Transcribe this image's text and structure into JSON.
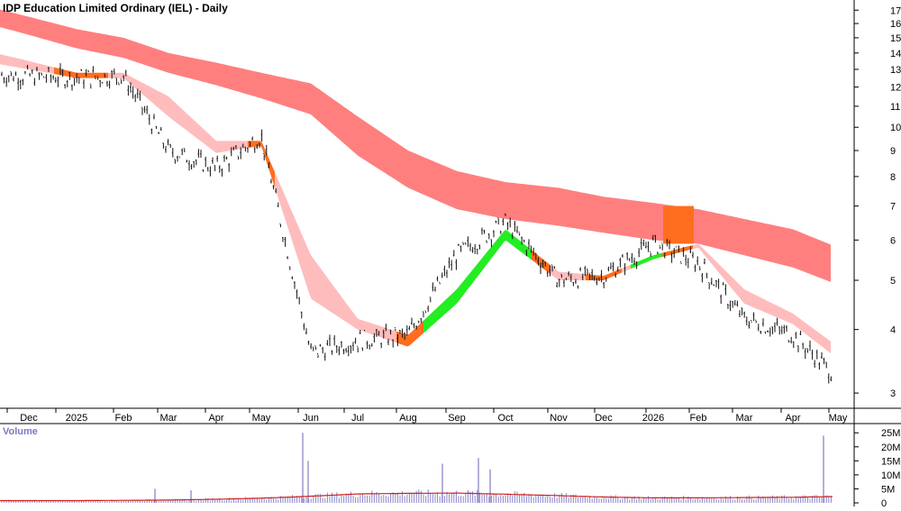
{
  "title": "IDP Education Limited Ordinary (IEL) - Daily",
  "chart_data": {
    "type": "line",
    "title": "IDP Education Limited Ordinary (IEL) - Daily",
    "price_scale": "log",
    "ylim": [
      2.8,
      17.8
    ],
    "y_ticks": [
      3,
      4,
      5,
      6,
      7,
      8,
      9,
      10,
      11,
      12,
      13,
      14,
      15,
      16,
      17
    ],
    "x_labels": [
      "Dec",
      "2025",
      "Feb",
      "Mar",
      "Apr",
      "May",
      "Jun",
      "Jul",
      "Aug",
      "Sep",
      "Oct",
      "Nov",
      "Dec",
      "2026",
      "Feb",
      "Mar",
      "Apr",
      "May"
    ],
    "price_series": {
      "name": "Price",
      "points": [
        [
          "Dec",
          12.6
        ],
        [
          "2025",
          12.5
        ],
        [
          "Feb",
          12.6
        ],
        [
          "Mar",
          9.0
        ],
        [
          "Apr",
          8.3
        ],
        [
          "May",
          9.6
        ],
        [
          "Jun",
          3.6
        ],
        [
          "Jul",
          3.8
        ],
        [
          "Aug",
          3.9
        ],
        [
          "Sep",
          5.6
        ],
        [
          "Oct",
          6.5
        ],
        [
          "Nov",
          5.0
        ],
        [
          "Dec",
          5.1
        ],
        [
          "2026",
          5.9
        ],
        [
          "Feb",
          5.4
        ],
        [
          "Mar",
          4.2
        ],
        [
          "Apr",
          3.9
        ],
        [
          "May",
          3.2
        ]
      ]
    },
    "long_term_band": {
      "upper": [
        [
          "Dec",
          16.5
        ],
        [
          "2025",
          15.6
        ],
        [
          "Feb",
          15.0
        ],
        [
          "Mar",
          14.0
        ],
        [
          "Apr",
          13.4
        ],
        [
          "May",
          12.8
        ],
        [
          "Jun",
          12.2
        ],
        [
          "Jul",
          10.5
        ],
        [
          "Aug",
          9.0
        ],
        [
          "Sep",
          8.2
        ],
        [
          "Oct",
          7.8
        ],
        [
          "Nov",
          7.6
        ],
        [
          "Dec",
          7.3
        ],
        [
          "2026",
          7.1
        ],
        [
          "Feb",
          6.9
        ],
        [
          "Mar",
          6.6
        ],
        [
          "Apr",
          6.3
        ],
        [
          "May",
          5.8
        ]
      ],
      "lower": [
        [
          "Dec",
          15.2
        ],
        [
          "2025",
          14.3
        ],
        [
          "Feb",
          13.7
        ],
        [
          "Mar",
          12.8
        ],
        [
          "Apr",
          12.1
        ],
        [
          "May",
          11.4
        ],
        [
          "Jun",
          10.6
        ],
        [
          "Jul",
          8.8
        ],
        [
          "Aug",
          7.6
        ],
        [
          "Sep",
          6.9
        ],
        [
          "Oct",
          6.6
        ],
        [
          "Nov",
          6.4
        ],
        [
          "Dec",
          6.2
        ],
        [
          "2026",
          6.0
        ],
        [
          "Feb",
          5.9
        ],
        [
          "Mar",
          5.6
        ],
        [
          "Apr",
          5.3
        ],
        [
          "May",
          4.9
        ]
      ]
    },
    "short_term_band": {
      "upper": [
        [
          "Dec",
          13.5
        ],
        [
          "2025",
          12.8
        ],
        [
          "Feb",
          12.8
        ],
        [
          "Mar",
          11.5
        ],
        [
          "Apr",
          9.4
        ],
        [
          "May",
          9.4
        ],
        [
          "Jun",
          5.6
        ],
        [
          "Jul",
          4.2
        ],
        [
          "Aug",
          3.9
        ],
        [
          "Sep",
          4.8
        ],
        [
          "Oct",
          6.3
        ],
        [
          "Nov",
          5.2
        ],
        [
          "Dec",
          5.1
        ],
        [
          "2026",
          5.6
        ],
        [
          "Feb",
          5.9
        ],
        [
          "Mar",
          4.8
        ],
        [
          "Apr",
          4.3
        ],
        [
          "May",
          3.7
        ]
      ],
      "lower": [
        [
          "Dec",
          13.0
        ],
        [
          "2025",
          12.5
        ],
        [
          "Feb",
          12.5
        ],
        [
          "Mar",
          10.5
        ],
        [
          "Apr",
          8.9
        ],
        [
          "May",
          9.2
        ],
        [
          "Jun",
          4.6
        ],
        [
          "Jul",
          4.0
        ],
        [
          "Aug",
          3.7
        ],
        [
          "Sep",
          4.5
        ],
        [
          "Oct",
          6.0
        ],
        [
          "Nov",
          5.0
        ],
        [
          "Dec",
          5.0
        ],
        [
          "2026",
          5.5
        ],
        [
          "Feb",
          5.8
        ],
        [
          "Mar",
          4.5
        ],
        [
          "Apr",
          4.1
        ],
        [
          "May",
          3.5
        ]
      ]
    },
    "volume": {
      "label": "Volume",
      "ylim": [
        0,
        27
      ],
      "y_ticks": [
        "25M",
        "20M",
        "15M",
        "10M",
        "5M",
        "0"
      ],
      "y_tick_values": [
        25,
        20,
        15,
        10,
        5,
        0
      ],
      "spikes": [
        [
          "Mar",
          5.0
        ],
        [
          "Apr",
          4.5
        ],
        [
          "Jun",
          25.0
        ],
        [
          "Jun",
          15.0
        ],
        [
          "Sep",
          14.0
        ],
        [
          "Oct",
          16.0
        ],
        [
          "Oct",
          12.0
        ],
        [
          "May",
          24.0
        ]
      ],
      "average": [
        [
          "Dec",
          0.8
        ],
        [
          "2025",
          0.8
        ],
        [
          "Feb",
          0.9
        ],
        [
          "Mar",
          1.0
        ],
        [
          "Apr",
          1.3
        ],
        [
          "May",
          1.7
        ],
        [
          "Jun",
          2.4
        ],
        [
          "Jul",
          3.2
        ],
        [
          "Aug",
          3.4
        ],
        [
          "Sep",
          3.5
        ],
        [
          "Oct",
          3.1
        ],
        [
          "Nov",
          2.6
        ],
        [
          "Dec",
          2.1
        ],
        [
          "2026",
          1.8
        ],
        [
          "Feb",
          1.8
        ],
        [
          "Mar",
          1.9
        ],
        [
          "Apr",
          2.0
        ],
        [
          "May",
          2.3
        ]
      ]
    },
    "colors": {
      "long_band": "#ff7f7f",
      "short_band": "#ffbcbc",
      "bull": "#22ee22",
      "bear": "#ff6d1f",
      "price": "#111111",
      "volume_bar": "#8a86c8",
      "volume_avg": "#cc2020",
      "volume_label": "#7a78c4"
    }
  }
}
